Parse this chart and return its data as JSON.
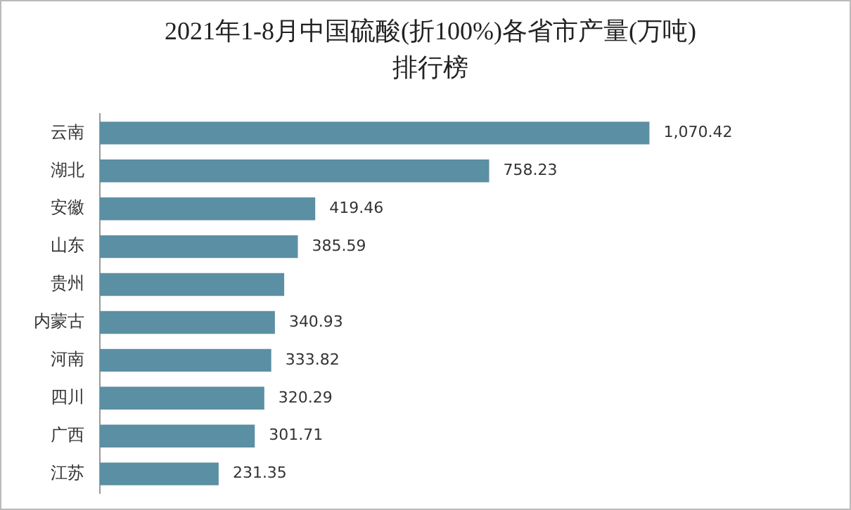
{
  "chart_data": {
    "type": "bar",
    "orientation": "horizontal",
    "title": "2021年1-8月中国硫酸(折100%)各省市产量(万吨)排行榜",
    "categories": [
      "云南",
      "湖北",
      "安徽",
      "山东",
      "贵州",
      "内蒙古",
      "河南",
      "四川",
      "广西",
      "江苏"
    ],
    "values": [
      1070.42,
      758.23,
      419.46,
      385.59,
      359,
      340.93,
      333.82,
      320.29,
      301.71,
      231.35
    ],
    "value_labels": [
      "1,070.42",
      "758.23",
      "419.46",
      "385.59",
      null,
      "340.93",
      "333.82",
      "320.29",
      "301.71",
      "231.35"
    ],
    "color": "#5b8fa3",
    "legend": false
  }
}
